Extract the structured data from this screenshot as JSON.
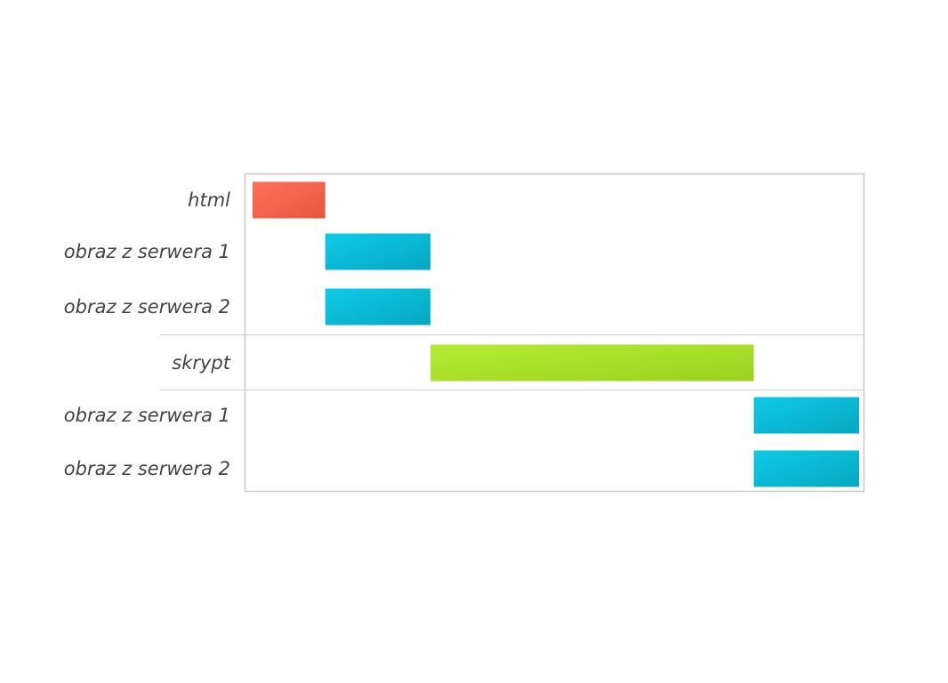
{
  "chart_data": {
    "type": "gantt",
    "rows": [
      {
        "label": "html",
        "start": 0,
        "end": 1,
        "kind": "html"
      },
      {
        "label": "obraz z serwera 1",
        "start": 1,
        "end": 2.45,
        "kind": "image"
      },
      {
        "label": "obraz z serwera 2",
        "start": 1,
        "end": 2.45,
        "kind": "image"
      },
      {
        "label": "skrypt",
        "start": 2.45,
        "end": 6.9,
        "kind": "script"
      },
      {
        "label": "obraz z serwera 1",
        "start": 6.9,
        "end": 8.35,
        "kind": "image"
      },
      {
        "label": "obraz z serwera 2",
        "start": 6.9,
        "end": 8.35,
        "kind": "image"
      }
    ],
    "xlim": [
      0,
      8.35
    ],
    "group_separators_after_rows": [
      2,
      3
    ],
    "colors": {
      "html": [
        "#ff7059",
        "#e8553d"
      ],
      "image": [
        "#0ecbe6",
        "#06a7c1"
      ],
      "script": [
        "#b4ec34",
        "#9ad21f"
      ],
      "frame": "#c8c8c8",
      "separator": "#d0d0d0",
      "label": "#444444"
    }
  }
}
